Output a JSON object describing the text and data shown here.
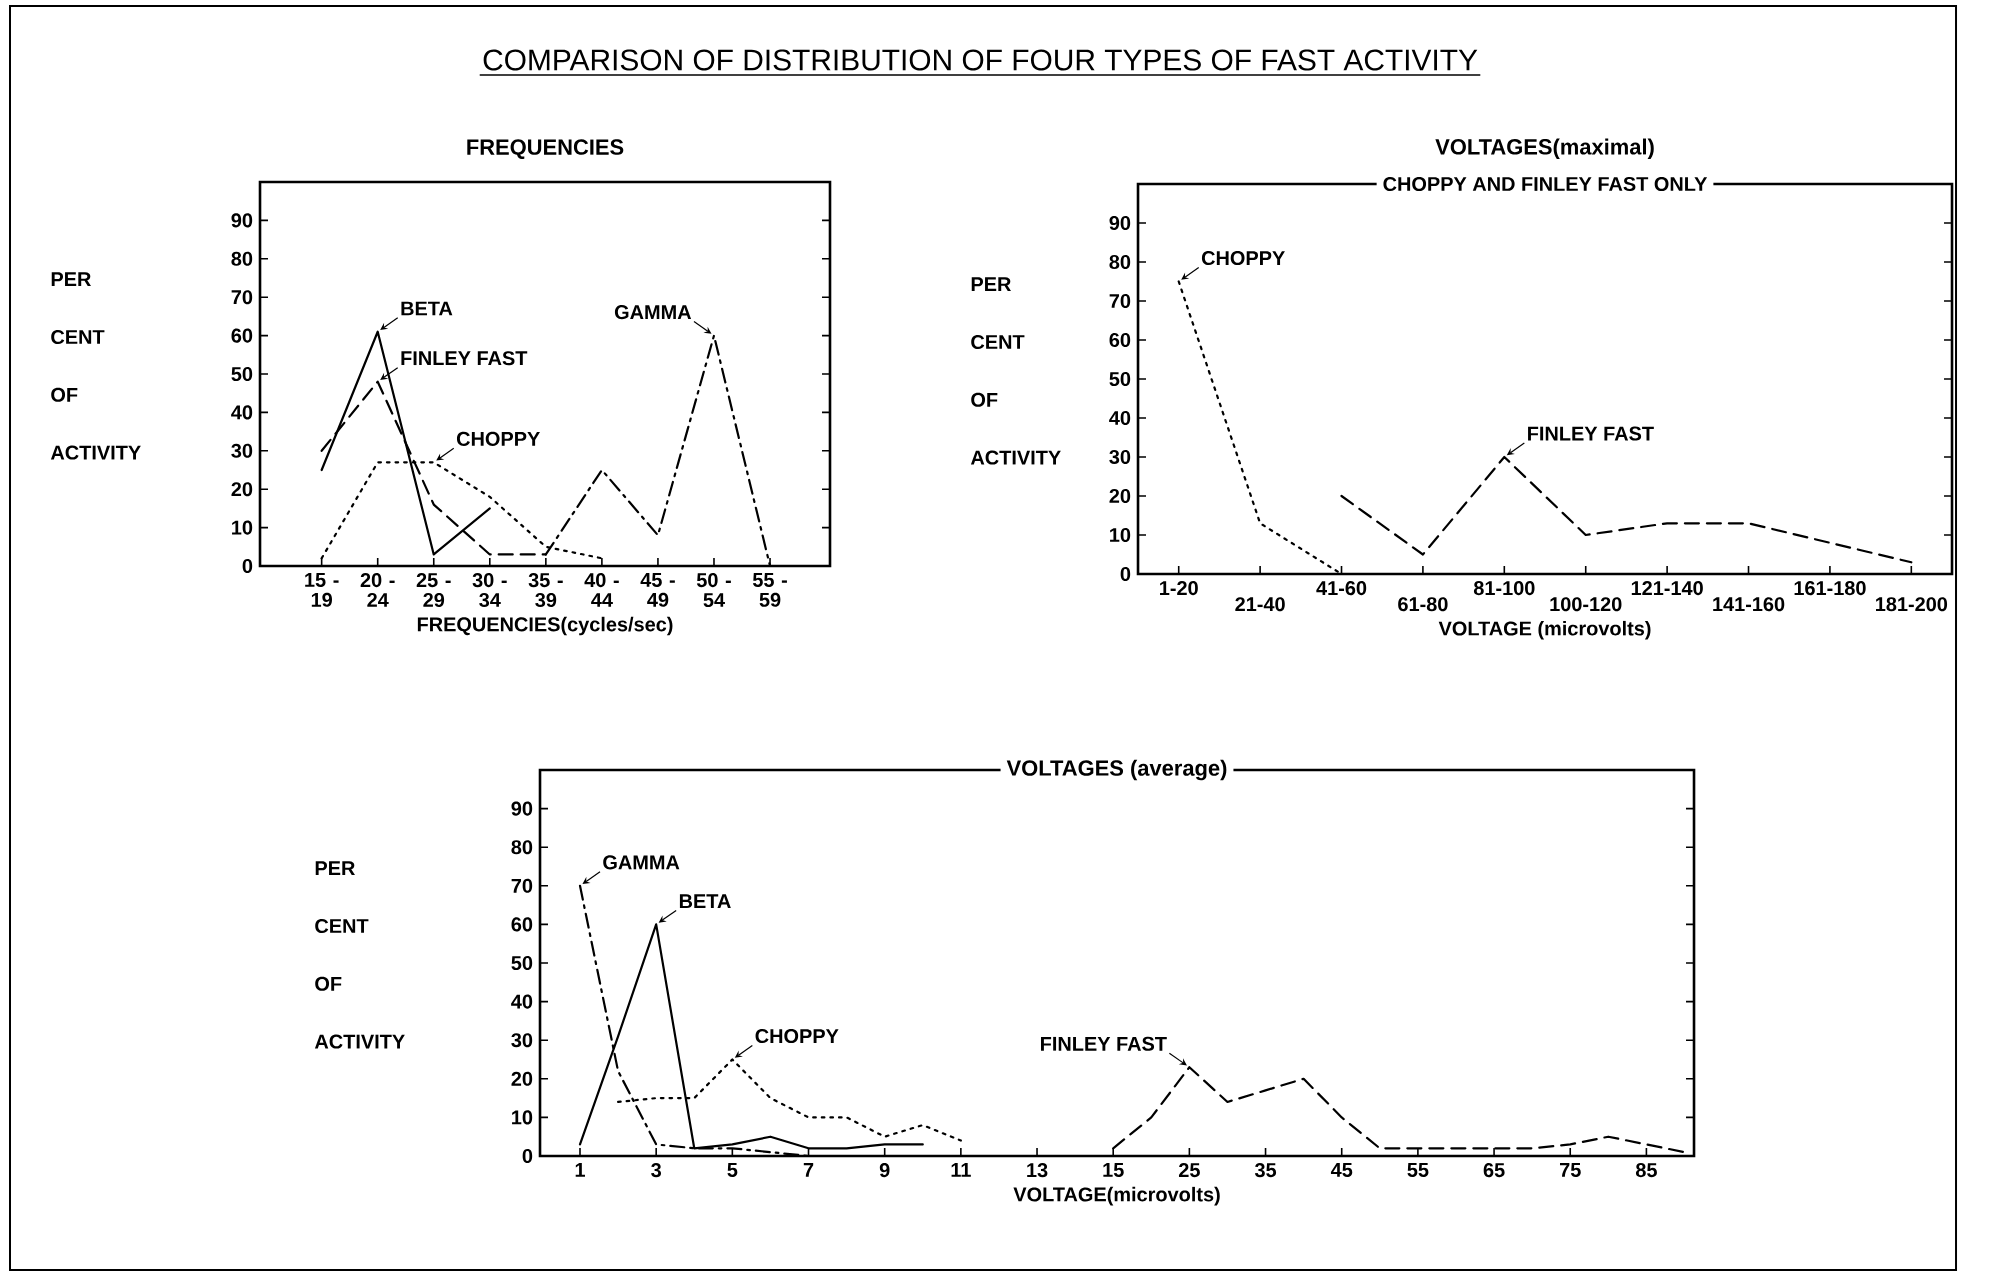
{
  "chart_data": [
    {
      "type": "line",
      "title": "FREQUENCIES",
      "xlabel": "FREQUENCIES(cycles/sec)",
      "ylabel": "PER CENT OF ACTIVITY",
      "annotations": [
        "COMPARISON OF DISTRIBUTION  OF FOUR TYPES OF FAST ACTIVITY"
      ],
      "categories": [
        "15 - 19",
        "20 - 24",
        "25 - 29",
        "30 - 34",
        "35 - 39",
        "40 - 44",
        "45 - 49",
        "50 - 54",
        "55 - 59"
      ],
      "ylim": [
        0,
        100
      ],
      "yticks": [
        0,
        10,
        20,
        30,
        40,
        50,
        60,
        70,
        80,
        90
      ],
      "series": [
        {
          "name": "BETA",
          "color": "#000000",
          "line_style": "solid",
          "values": [
            25,
            61,
            3,
            15,
            null,
            null,
            null,
            null,
            null
          ]
        },
        {
          "name": "FINLEY FAST",
          "color": "#000000",
          "line_style": "dashed",
          "values": [
            30,
            48,
            16,
            3,
            3,
            null,
            null,
            null,
            null
          ]
        },
        {
          "name": "CHOPPY",
          "color": "#000000",
          "line_style": "dotted",
          "values": [
            2,
            27,
            27,
            18,
            5,
            2,
            null,
            null,
            null
          ]
        },
        {
          "name": "GAMMA",
          "color": "#000000",
          "line_style": "dashdot",
          "values": [
            null,
            null,
            null,
            null,
            3,
            25,
            8,
            60,
            0
          ]
        }
      ]
    },
    {
      "type": "line",
      "title": "VOLTAGES(maximal)",
      "subtitle": "CHOPPY AND FINLEY FAST ONLY",
      "xlabel": "VOLTAGE  (microvolts)",
      "ylabel": "PER CENT OF ACTIVITY",
      "categories": [
        "1-20",
        "21-40",
        "41-60",
        "61-80",
        "81-100",
        "100-120",
        "121-140",
        "141-160",
        "161-180",
        "181-200"
      ],
      "ylim": [
        0,
        100
      ],
      "yticks": [
        0,
        10,
        20,
        30,
        40,
        50,
        60,
        70,
        80,
        90
      ],
      "series": [
        {
          "name": "CHOPPY",
          "color": "#000000",
          "line_style": "dotted",
          "values": [
            75,
            13,
            0,
            null,
            null,
            null,
            null,
            null,
            null,
            null
          ]
        },
        {
          "name": "FINLEY FAST",
          "color": "#000000",
          "line_style": "dashed",
          "values": [
            null,
            null,
            20,
            5,
            30,
            10,
            13,
            13,
            8,
            3
          ]
        }
      ]
    },
    {
      "type": "line",
      "title": "VOLTAGES (average)",
      "xlabel": "VOLTAGE(microvolts)",
      "ylabel": "PER CENT OF ACTIVITY",
      "categories": [
        "1",
        null,
        "3",
        null,
        "5",
        null,
        "7",
        null,
        "9",
        null,
        "11",
        null,
        "13",
        null,
        "15",
        null,
        "25",
        null,
        "35",
        null,
        "45",
        null,
        "55",
        null,
        "65",
        null,
        "75",
        null,
        "85",
        null
      ],
      "ylim": [
        0,
        100
      ],
      "yticks": [
        0,
        10,
        20,
        30,
        40,
        50,
        60,
        70,
        80,
        90
      ],
      "series": [
        {
          "name": "GAMMA",
          "color": "#000000",
          "line_style": "dashdot",
          "values": [
            70,
            22,
            3,
            2,
            2,
            1,
            0,
            null,
            null,
            null,
            null,
            null,
            null,
            null,
            null,
            null,
            null,
            null,
            null,
            null,
            null,
            null,
            null,
            null,
            null,
            null,
            null,
            null,
            null,
            null
          ]
        },
        {
          "name": "BETA",
          "color": "#000000",
          "line_style": "solid",
          "values": [
            3,
            31,
            60,
            2,
            3,
            5,
            2,
            2,
            3,
            3,
            null,
            null,
            null,
            null,
            null,
            null,
            null,
            null,
            null,
            null,
            null,
            null,
            null,
            null,
            null,
            null,
            null,
            null,
            null,
            null
          ]
        },
        {
          "name": "CHOPPY",
          "color": "#000000",
          "line_style": "dotted",
          "values": [
            null,
            14,
            15,
            15,
            25,
            15,
            10,
            10,
            5,
            8,
            4,
            null,
            null,
            null,
            null,
            null,
            null,
            null,
            null,
            null,
            null,
            null,
            null,
            null,
            null,
            null,
            null,
            null,
            null,
            null
          ]
        },
        {
          "name": "FINLEY FAST",
          "color": "#000000",
          "line_style": "dashed",
          "values": [
            null,
            null,
            null,
            null,
            null,
            null,
            null,
            null,
            null,
            null,
            null,
            null,
            null,
            null,
            2,
            10,
            23,
            14,
            17,
            20,
            10,
            2,
            2,
            2,
            2,
            2,
            3,
            5,
            3,
            1
          ]
        }
      ]
    }
  ]
}
